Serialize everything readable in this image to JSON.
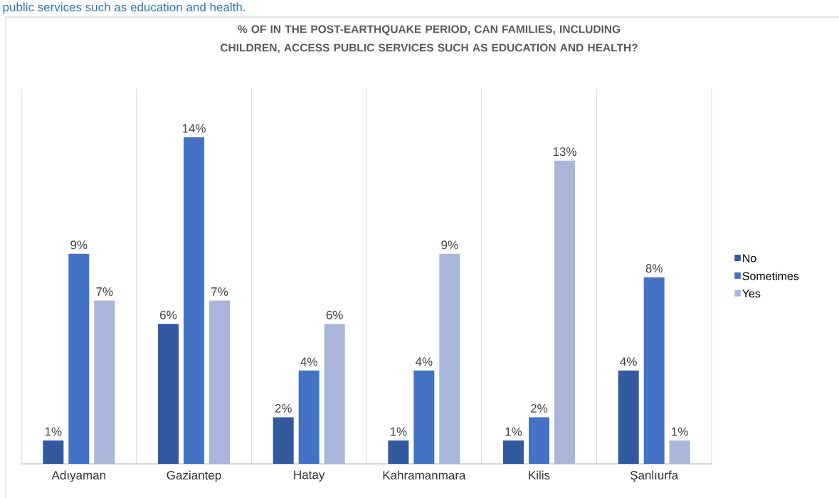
{
  "chart_data": {
    "type": "bar",
    "title": "% OF IN THE POST-EARTHQUAKE PERIOD, CAN FAMILIES, INCLUDING CHILDREN, ACCESS PUBLIC SERVICES SUCH AS EDUCATION AND HEALTH?",
    "annotations": [
      "public services such as education and health."
    ],
    "categories": [
      "Adıyaman",
      "Gaziantep",
      "Hatay",
      "Kahramanmara",
      "Kilis",
      "Şanlıurfa"
    ],
    "grid": "x",
    "legend": "right",
    "series": [
      {
        "name": "No",
        "color": "#335aa0",
        "values": [
          1,
          6,
          2,
          1,
          1,
          4
        ],
        "value_labels": [
          "1%",
          "6%",
          "2%",
          "1%",
          "1%",
          "4%"
        ]
      },
      {
        "name": "Sometimes",
        "color": "#4472c4",
        "values": [
          9,
          14,
          4,
          4,
          2,
          8
        ],
        "value_labels": [
          "9%",
          "14%",
          "4%",
          "4%",
          "2%",
          "8%"
        ]
      },
      {
        "name": "Yes",
        "color": "#a9b6da",
        "values": [
          7,
          7,
          6,
          9,
          13,
          1
        ],
        "value_labels": [
          "7%",
          "7%",
          "6%",
          "9%",
          "13%",
          "1%"
        ]
      }
    ]
  }
}
